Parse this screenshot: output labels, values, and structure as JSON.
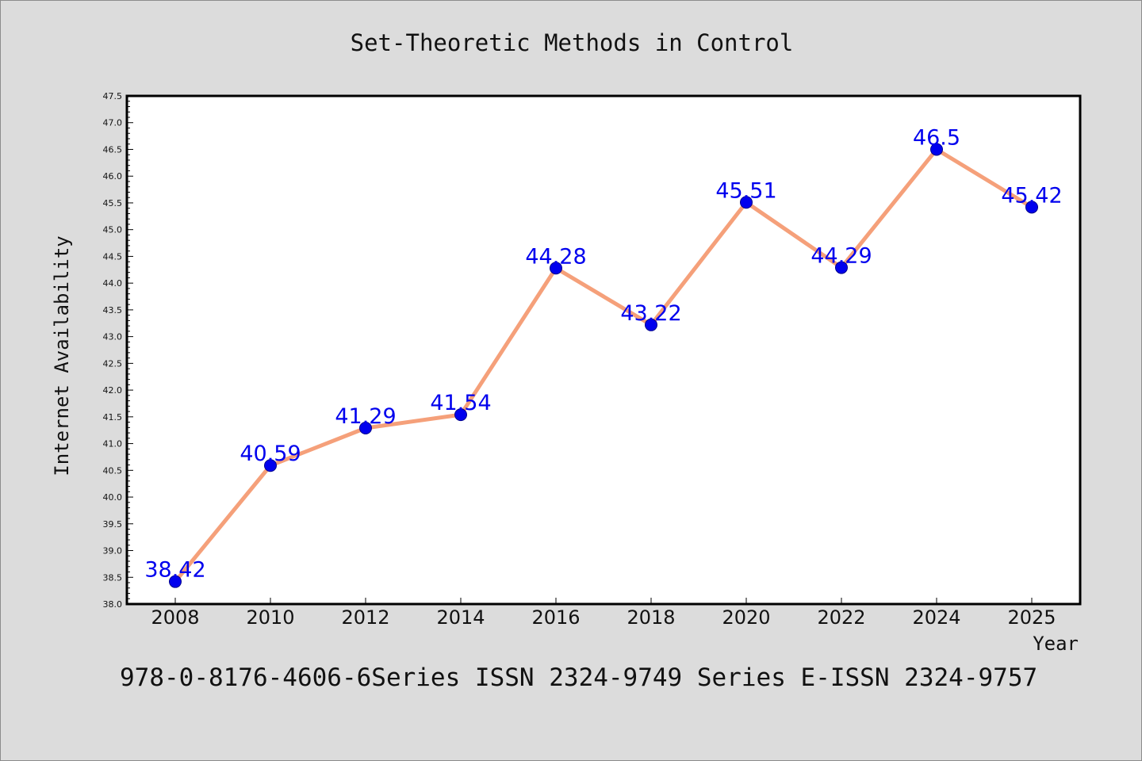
{
  "chart_data": {
    "type": "line",
    "title": "Set-Theoretic Methods in Control",
    "xlabel": "Year",
    "ylabel": "Internet Availability",
    "categories": [
      "2008",
      "2010",
      "2012",
      "2014",
      "2016",
      "2018",
      "2020",
      "2022",
      "2024",
      "2025"
    ],
    "series": [
      {
        "values": [
          38.42,
          40.59,
          41.29,
          41.54,
          44.28,
          43.22,
          45.51,
          44.29,
          46.5,
          45.42
        ],
        "labels": [
          "38.42",
          "40.59",
          "41.29",
          "41.54",
          "44.28",
          "43.22",
          "45.51",
          "44.29",
          "46.5",
          "45.42"
        ],
        "line_color": "#f5a07a",
        "marker_color": "#0000ee",
        "label_color": "#0000ee"
      }
    ],
    "ylim": [
      38.0,
      47.5
    ],
    "yticks": [
      "38.0",
      "38.5",
      "39.0",
      "39.5",
      "40.0",
      "40.5",
      "41.0",
      "41.5",
      "42.0",
      "42.5",
      "43.0",
      "43.5",
      "44.0",
      "44.5",
      "45.0",
      "45.5",
      "46.0",
      "46.5",
      "47.0",
      "47.5"
    ],
    "grid": false,
    "legend": "none"
  },
  "footer": {
    "text": "978-0-8176-4606-6Series ISSN 2324-9749 Series E-ISSN 2324-9757"
  },
  "colors": {
    "background": "#dcdcdc",
    "plot_background": "#ffffff",
    "line": "#f5a07a",
    "marker": "#0000ee"
  }
}
